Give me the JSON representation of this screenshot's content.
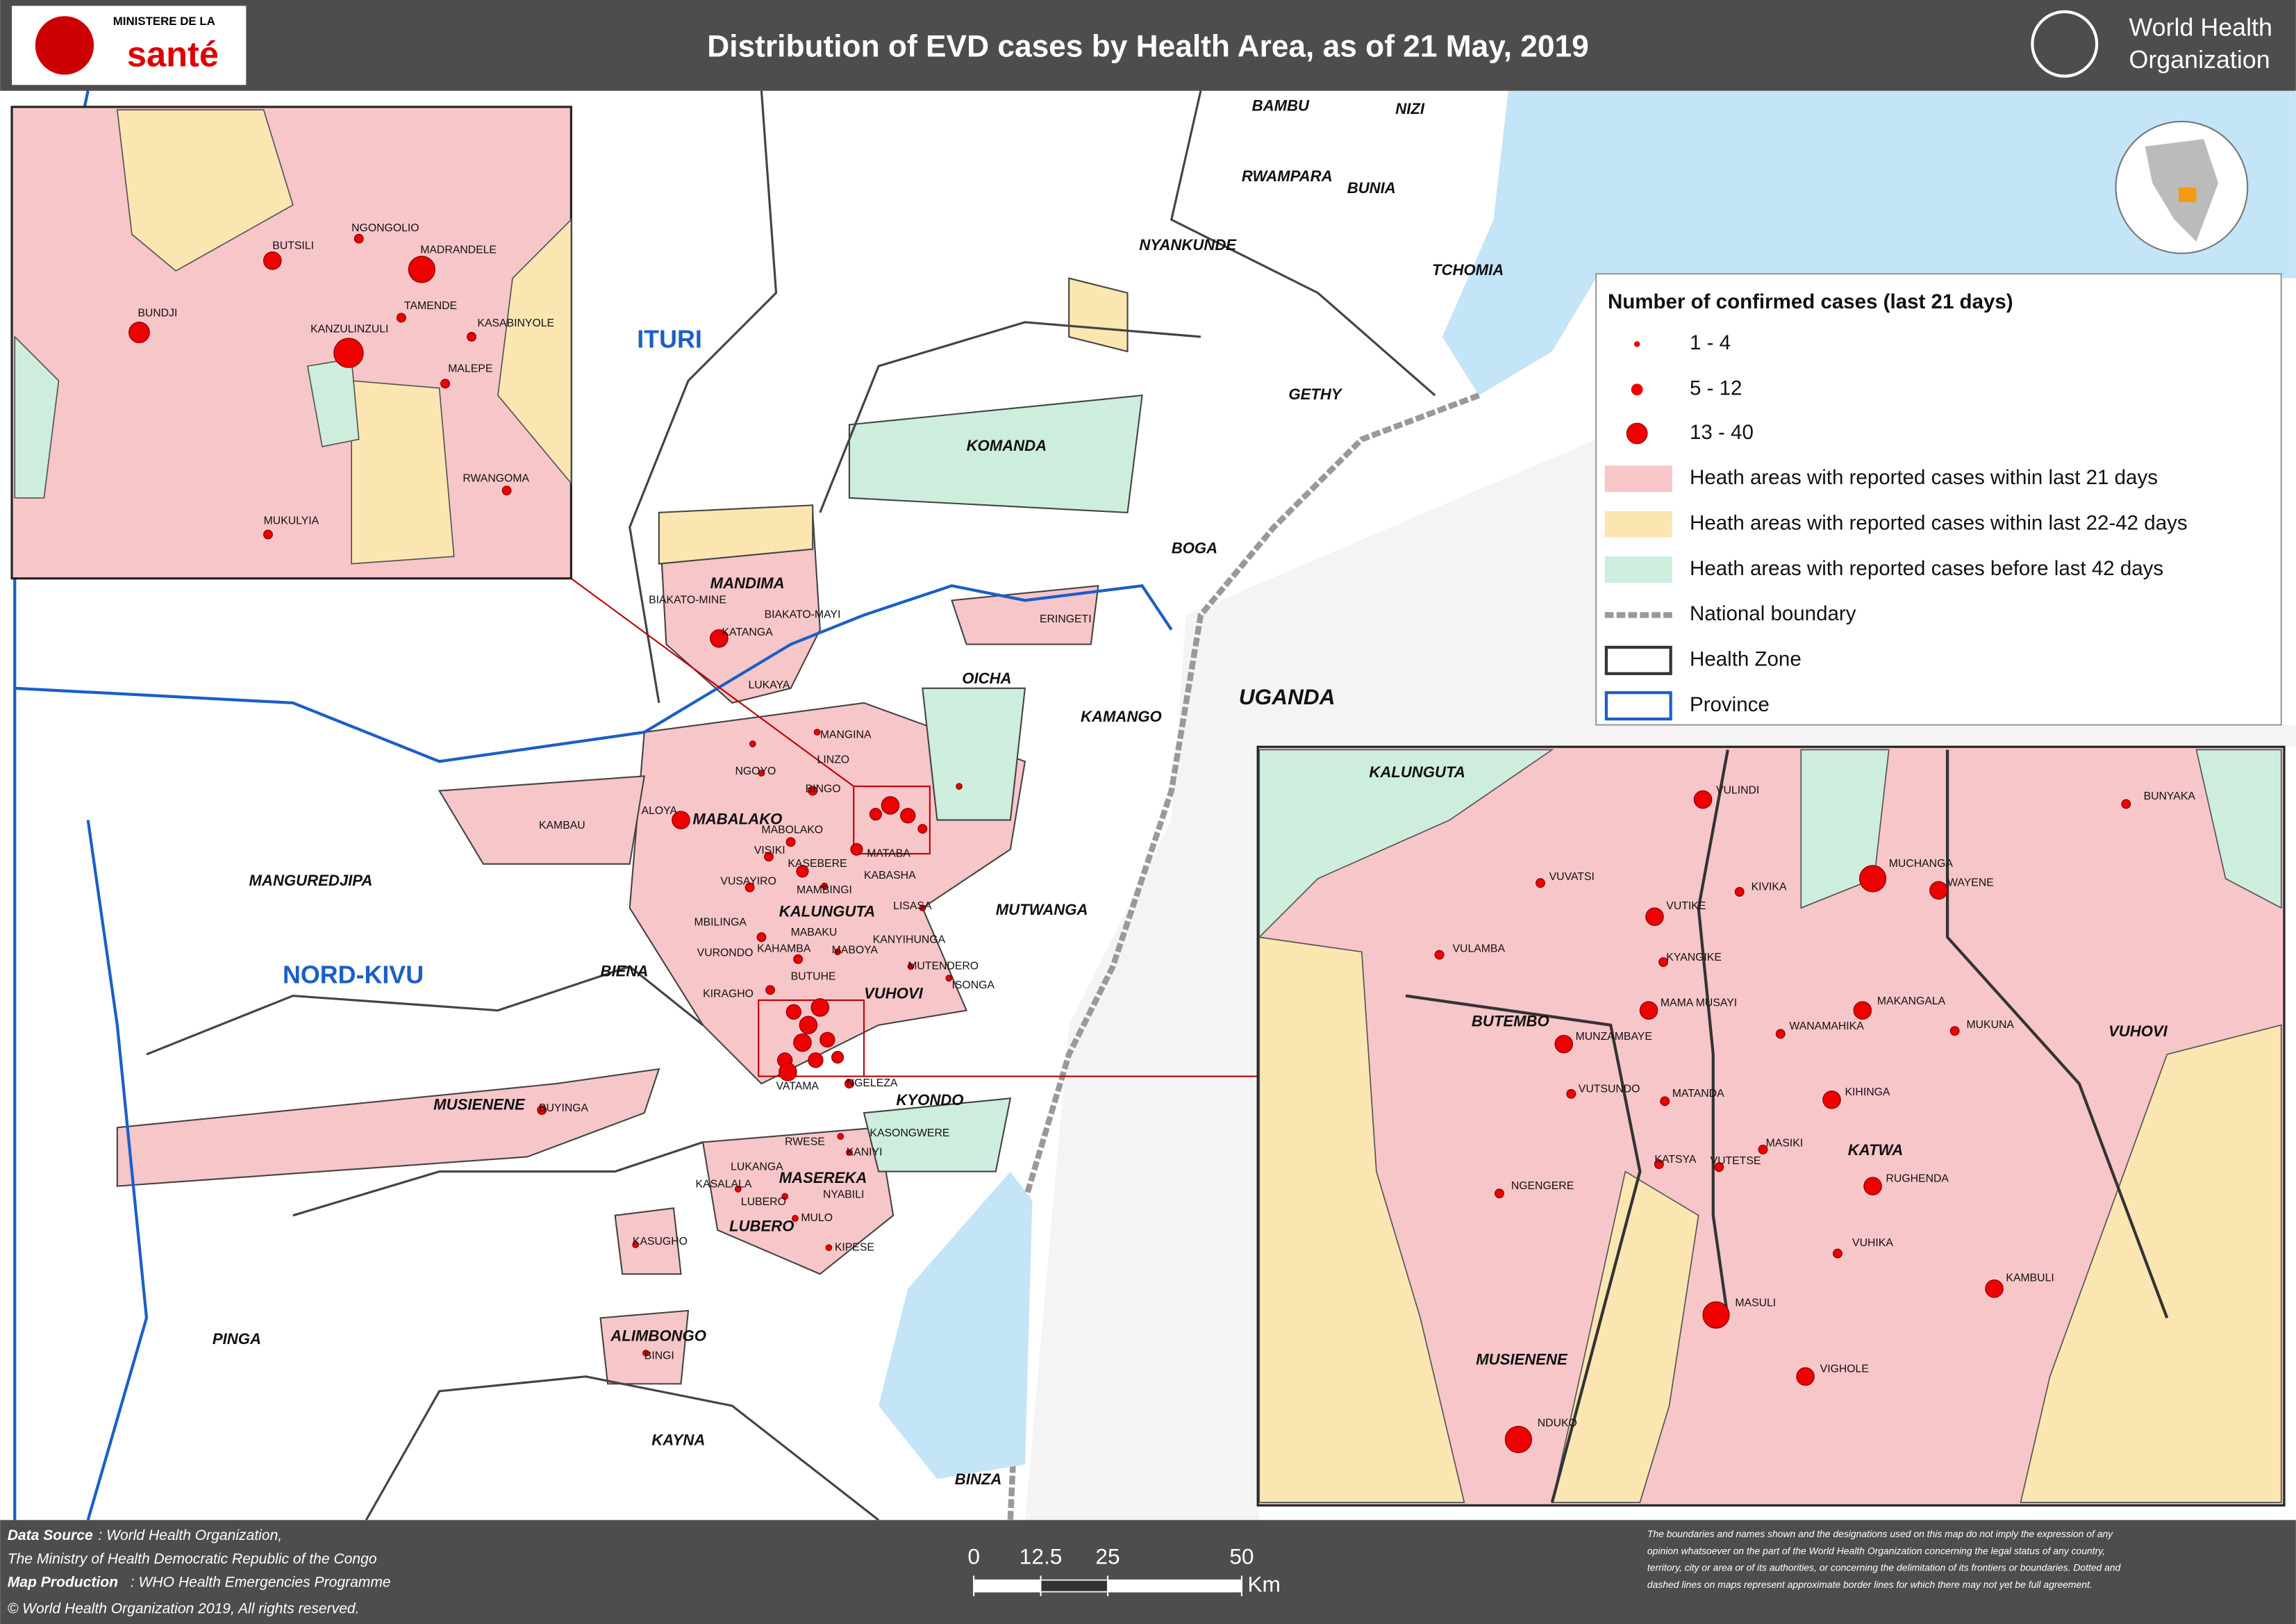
{
  "header": {
    "title": "Distribution of EVD cases by Health Area, as of 21 May, 2019",
    "left_logo": [
      "MINISTERE DE LA",
      "santé"
    ],
    "right_logo": [
      "World Health",
      "Organization"
    ]
  },
  "main_map": {
    "provinces": [
      "ITURI",
      "NORD-KIVU"
    ],
    "countries": [
      "UGANDA"
    ],
    "zones": [
      "BAMBU",
      "NIZI",
      "RWAMPARA",
      "BUNIA",
      "NYANKUNDE",
      "TCHOMIA",
      "GETHY",
      "KOMANDA",
      "BOGA",
      "MANDIMA",
      "OICHA",
      "KAMANGO",
      "MABALAKO",
      "MANGUREDJIPA",
      "KALUNGUTA",
      "MUTWANGA",
      "BIENA",
      "VUHOVI",
      "MUSIENENE",
      "KYONDO",
      "MASEREKA",
      "LUBERO",
      "PINGA",
      "ALIMBONGO",
      "KAYNA",
      "BINZA"
    ],
    "areas": [
      "BIAKATO-MINE",
      "BIAKATO-MAYI",
      "KATANGA",
      "ERINGETI",
      "LUKAYA",
      "MANGINA",
      "LINZO",
      "NGOYO",
      "BINGO",
      "ALOYA",
      "KAMBAU",
      "MABOLAKO",
      "VISIKI",
      "MATABA",
      "KASEBERE",
      "KABASHA",
      "VUSAYIRO",
      "MAMBINGI",
      "LISASA",
      "MBILINGA",
      "MABAKU",
      "KAHAMBA",
      "KANYIHUNGA",
      "VURONDO",
      "MABOYA",
      "MUTENDERO",
      "BUTUHE",
      "ISONGA",
      "KIRAGHO",
      "VATAMA",
      "NGELEZA",
      "KASONGWERE",
      "RWESE",
      "KANIYI",
      "LUKANGA",
      "KASALALA",
      "NYABILI",
      "LUBERO",
      "MULO",
      "KIPESE",
      "KASUGHO",
      "BUYINGA",
      "BINGI"
    ]
  },
  "left_inset": {
    "areas": [
      "NGONGOLIO",
      "BUTSILI",
      "MADRANDELE",
      "TAMENDE",
      "KASABINYOLE",
      "BUNDJI",
      "KANZULINZULI",
      "MALEPE",
      "RWANGOMA",
      "MUKULYIA"
    ]
  },
  "right_inset": {
    "zones": [
      "KALUNGUTA",
      "BUTEMBO",
      "VUHOVI",
      "KATWA",
      "MUSIENENE"
    ],
    "areas": [
      "VULINDI",
      "BUNYAKA",
      "VUVATSI",
      "KIVIKA",
      "MUCHANGA",
      "WAYENE",
      "VUTIKE",
      "VULAMBA",
      "KYANGIKE",
      "MAMA MUSAYI",
      "MAKANGALA",
      "WANAMAHIKA",
      "MUKUNA",
      "MUNZAMBAYE",
      "VUTSUNDO",
      "MATANDA",
      "KIHINGA",
      "MASIKI",
      "KATSYA",
      "VUTETSE",
      "RUGHENDA",
      "NGENGERE",
      "VUHIKA",
      "KAMBULI",
      "MASULI",
      "VIGHOLE",
      "NDUKO"
    ]
  },
  "legend": {
    "title": "Number of confirmed cases (last 21 days)",
    "items": [
      "1 - 4",
      "5 - 12",
      "13 - 40",
      "Heath areas with reported cases within last 21 days",
      "Heath areas with reported cases within last 22-42 days",
      "Heath areas with reported cases before last 42 days",
      "National boundary",
      "Health Zone",
      "Province"
    ]
  },
  "scale_bar": {
    "ticks": [
      0,
      12.5,
      25,
      50
    ],
    "unit": "Km"
  },
  "footer": {
    "source_label": "Data Source",
    "source": ": World Health Organization,",
    "ministry": "The Ministry of Health Democratic Republic of the Congo",
    "production_label": "Map Production",
    "production": ": WHO Health Emergencies Programme",
    "copyright": "© World Health Organization  2019,  All rights reserved.",
    "disclaimer": [
      "The boundaries and names shown and the designations used on this map do not imply the expression of any",
      "opinion whatsoever on the part of the World Health Organization concerning the legal status of any country,",
      "territory, city or area or of its authorities, or concerning the delimitation of its frontiers or boundaries. Dotted and",
      "dashed lines on maps represent approximate border lines for which there may not yet be full agreement."
    ]
  }
}
